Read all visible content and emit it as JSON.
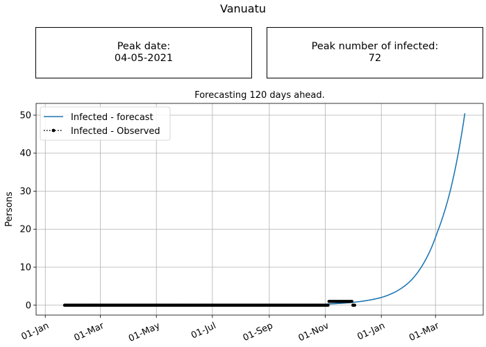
{
  "page_title": "Vanuatu",
  "info_boxes": {
    "peak_date": {
      "label": "Peak date:",
      "value": "04-05-2021"
    },
    "peak_infected": {
      "label": "Peak number of infected:",
      "value": "72"
    }
  },
  "chart_data": {
    "type": "line",
    "title": "Forecasting 120 days ahead.",
    "xlabel": "",
    "ylabel": "Persons",
    "x_tick_labels": [
      "01-Jan",
      "01-Mar",
      "01-May",
      "01-Jul",
      "01-Sep",
      "01-Nov",
      "01-Jan",
      "01-Mar"
    ],
    "x_tick_dates": [
      "2020-01-01",
      "2020-03-01",
      "2020-05-01",
      "2020-07-01",
      "2020-09-01",
      "2020-11-01",
      "2021-01-01",
      "2021-03-01"
    ],
    "xlim": [
      "2019-12-22",
      "2021-04-22"
    ],
    "ylim": [
      -2.6,
      53.1
    ],
    "y_ticks": [
      0,
      10,
      20,
      30,
      40,
      50
    ],
    "grid": true,
    "legend_position": "top-left",
    "series": [
      {
        "name": "Infected - forecast",
        "color": "#1f77b4",
        "style": "solid",
        "points": [
          [
            "2020-11-03",
            0.3
          ],
          [
            "2020-11-18",
            0.5
          ],
          [
            "2020-12-03",
            0.8
          ],
          [
            "2020-12-18",
            1.3
          ],
          [
            "2021-01-02",
            2.1
          ],
          [
            "2021-01-17",
            3.6
          ],
          [
            "2021-02-01",
            6.2
          ],
          [
            "2021-02-16",
            11.0
          ],
          [
            "2021-03-03",
            19.2
          ],
          [
            "2021-03-18",
            31.0
          ],
          [
            "2021-04-02",
            50.5
          ]
        ]
      },
      {
        "name": "Infected - Observed",
        "color": "#000000",
        "style": "dotted-markers",
        "segments": [
          {
            "start": "2020-01-22",
            "end": "2020-11-04",
            "value": 0
          },
          {
            "start": "2020-11-05",
            "end": "2020-11-30",
            "value": 1
          },
          {
            "start": "2020-12-01",
            "end": "2020-12-03",
            "value": 0
          }
        ]
      }
    ]
  }
}
